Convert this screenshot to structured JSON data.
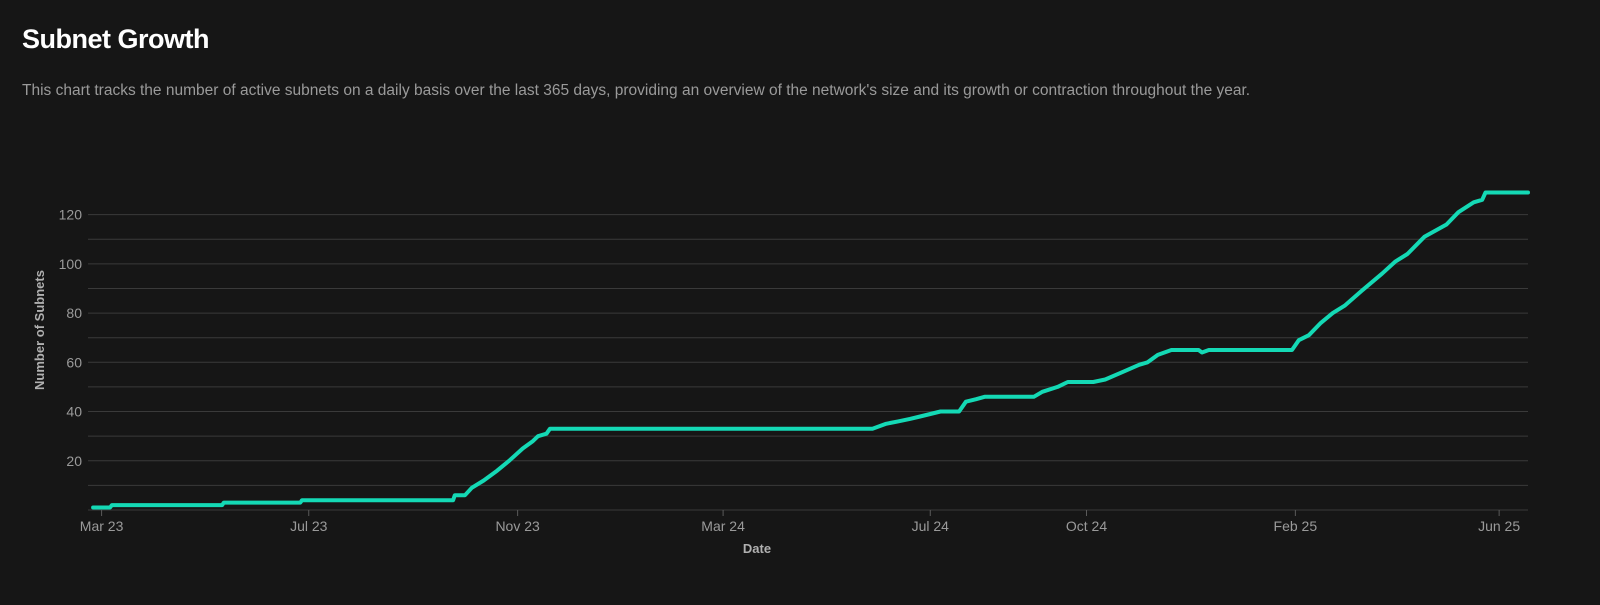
{
  "header": {
    "title": "Subnet Growth",
    "description": "This chart tracks the number of active subnets on a daily basis over the last 365 days, providing an overview of the network's size and its growth or contraction throughout the year."
  },
  "chart_data": {
    "type": "line",
    "xlabel": "Date",
    "ylabel": "Number of Subnets",
    "x_ticks": [
      {
        "date": "2023-03-01",
        "label": "Mar 23"
      },
      {
        "date": "2023-07-01",
        "label": "Jul 23"
      },
      {
        "date": "2023-11-01",
        "label": "Nov 23"
      },
      {
        "date": "2024-03-01",
        "label": "Mar 24"
      },
      {
        "date": "2024-07-01",
        "label": "Jul 24"
      },
      {
        "date": "2024-10-01",
        "label": "Oct 24"
      },
      {
        "date": "2025-02-01",
        "label": "Feb 25"
      },
      {
        "date": "2025-06-01",
        "label": "Jun 25"
      }
    ],
    "xlim": [
      "2023-02-21",
      "2025-06-18"
    ],
    "y_ticks": [
      20,
      40,
      60,
      80,
      100,
      120
    ],
    "ylim": [
      0,
      130
    ],
    "grid": true,
    "line_color": "#14d9b5",
    "grid_color": "#3a3a3a",
    "series": [
      {
        "points": [
          [
            "2023-02-24",
            1
          ],
          [
            "2023-03-06",
            1
          ],
          [
            "2023-03-07",
            2
          ],
          [
            "2023-05-11",
            2
          ],
          [
            "2023-05-12",
            3
          ],
          [
            "2023-06-26",
            3
          ],
          [
            "2023-06-27",
            4
          ],
          [
            "2023-09-24",
            4
          ],
          [
            "2023-09-25",
            6
          ],
          [
            "2023-10-01",
            6
          ],
          [
            "2023-10-05",
            9
          ],
          [
            "2023-10-12",
            12
          ],
          [
            "2023-10-20",
            16
          ],
          [
            "2023-10-27",
            20
          ],
          [
            "2023-11-04",
            25
          ],
          [
            "2023-11-10",
            28
          ],
          [
            "2023-11-13",
            30
          ],
          [
            "2023-11-18",
            31
          ],
          [
            "2023-11-20",
            33
          ],
          [
            "2024-05-28",
            33
          ],
          [
            "2024-06-01",
            34
          ],
          [
            "2024-06-05",
            35
          ],
          [
            "2024-06-12",
            36
          ],
          [
            "2024-06-19",
            37
          ],
          [
            "2024-06-25",
            38
          ],
          [
            "2024-07-01",
            39
          ],
          [
            "2024-07-07",
            40
          ],
          [
            "2024-07-18",
            40
          ],
          [
            "2024-07-22",
            44
          ],
          [
            "2024-07-28",
            45
          ],
          [
            "2024-08-02",
            46
          ],
          [
            "2024-08-31",
            46
          ],
          [
            "2024-09-05",
            48
          ],
          [
            "2024-09-14",
            50
          ],
          [
            "2024-09-20",
            52
          ],
          [
            "2024-09-25",
            52
          ],
          [
            "2024-10-05",
            52
          ],
          [
            "2024-10-12",
            53
          ],
          [
            "2024-10-22",
            56
          ],
          [
            "2024-11-01",
            59
          ],
          [
            "2024-11-06",
            60
          ],
          [
            "2024-11-12",
            63
          ],
          [
            "2024-11-20",
            65
          ],
          [
            "2024-12-06",
            65
          ],
          [
            "2024-12-08",
            64
          ],
          [
            "2024-12-12",
            65
          ],
          [
            "2025-01-30",
            65
          ],
          [
            "2025-02-03",
            69
          ],
          [
            "2025-02-09",
            71
          ],
          [
            "2025-02-16",
            76
          ],
          [
            "2025-02-23",
            80
          ],
          [
            "2025-03-02",
            83
          ],
          [
            "2025-03-12",
            89
          ],
          [
            "2025-03-24",
            96
          ],
          [
            "2025-04-01",
            101
          ],
          [
            "2025-04-08",
            104
          ],
          [
            "2025-04-18",
            111
          ],
          [
            "2025-05-01",
            116
          ],
          [
            "2025-05-08",
            121
          ],
          [
            "2025-05-17",
            125
          ],
          [
            "2025-05-22",
            126
          ],
          [
            "2025-05-24",
            129
          ],
          [
            "2025-06-18",
            129
          ]
        ]
      }
    ]
  }
}
